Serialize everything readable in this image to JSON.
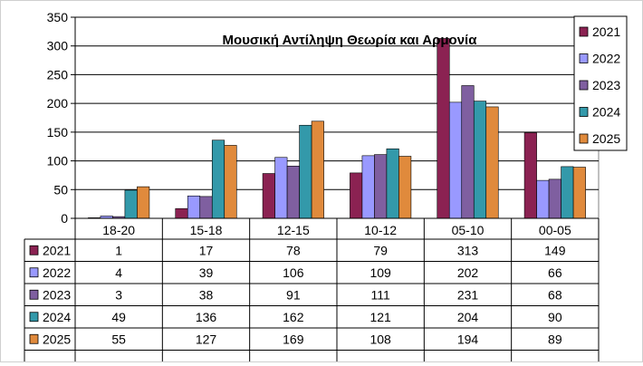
{
  "chart_data": {
    "type": "bar",
    "title": "Μουσική  Αντίληψη Θεωρία και Αρμονία",
    "xlabel": "",
    "ylabel": "",
    "ylim": [
      0,
      350
    ],
    "yticks": [
      0,
      50,
      100,
      150,
      200,
      250,
      300,
      350
    ],
    "grid": true,
    "legend_position": "top-right",
    "categories": [
      "18-20",
      "15-18",
      "12-15",
      "10-12",
      "05-10",
      "00-05"
    ],
    "series": [
      {
        "name": "2021",
        "color": "#8B2252",
        "values": [
          1,
          17,
          78,
          79,
          313,
          149
        ]
      },
      {
        "name": "2022",
        "color": "#9999FF",
        "values": [
          4,
          39,
          106,
          109,
          202,
          66
        ]
      },
      {
        "name": "2023",
        "color": "#7F5FA0",
        "values": [
          3,
          38,
          91,
          111,
          231,
          68
        ]
      },
      {
        "name": "2024",
        "color": "#3399AA",
        "values": [
          49,
          136,
          162,
          121,
          204,
          90
        ]
      },
      {
        "name": "2025",
        "color": "#E08A3C",
        "values": [
          55,
          127,
          169,
          108,
          194,
          89
        ]
      }
    ],
    "data_table": true
  }
}
